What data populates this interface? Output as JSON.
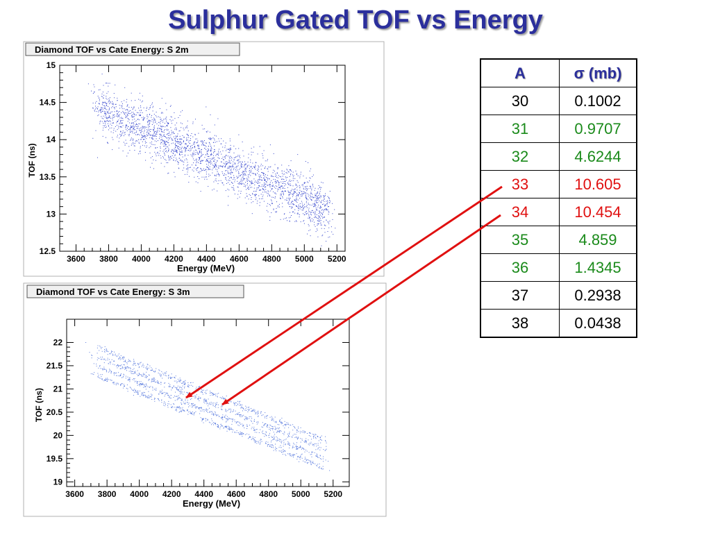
{
  "slide_title": "Sulphur Gated TOF vs Energy",
  "table": {
    "headers": [
      "A",
      "σ (mb)"
    ],
    "rows": [
      {
        "a": "30",
        "sigma": "0.1002",
        "color": "#000000"
      },
      {
        "a": "31",
        "sigma": "0.9707",
        "color": "#1a8a1a"
      },
      {
        "a": "32",
        "sigma": "4.6244",
        "color": "#1a8a1a"
      },
      {
        "a": "33",
        "sigma": "10.605",
        "color": "#e01010"
      },
      {
        "a": "34",
        "sigma": "10.454",
        "color": "#e01010"
      },
      {
        "a": "35",
        "sigma": "4.859",
        "color": "#1a8a1a"
      },
      {
        "a": "36",
        "sigma": "1.4345",
        "color": "#1a8a1a"
      },
      {
        "a": "37",
        "sigma": "0.2938",
        "color": "#000000"
      },
      {
        "a": "38",
        "sigma": "0.0438",
        "color": "#000000"
      }
    ]
  },
  "arrow_color": "#e01010",
  "chart_data": [
    {
      "type": "scatter",
      "title": "Diamond TOF vs Cate Energy: S 2m",
      "xlabel": "Energy (MeV)",
      "ylabel": "TOF (ns)",
      "xlim": [
        3500,
        5250
      ],
      "ylim": [
        12.5,
        15
      ],
      "xticks": [
        3600,
        3800,
        4000,
        4200,
        4400,
        4600,
        4800,
        5000,
        5200
      ],
      "yticks": [
        12.5,
        13,
        13.5,
        14,
        14.5,
        15
      ],
      "ytick_labels": [
        "12.5",
        "13",
        "13.5",
        "14",
        "14.5",
        "15"
      ],
      "point_color": "#3344cc",
      "bands": [
        {
          "x_start": 3700,
          "x_end": 5150,
          "y_start": 14.45,
          "y_end": 13.05
        }
      ],
      "band_width_ns": 0.35
    },
    {
      "type": "scatter",
      "title": "Diamond TOF vs Cate Energy: S 3m",
      "xlabel": "Energy (MeV)",
      "ylabel": "TOF (ns)",
      "xlim": [
        3550,
        5300
      ],
      "ylim": [
        18.9,
        22.5
      ],
      "xticks": [
        3600,
        3800,
        4000,
        4200,
        4400,
        4600,
        4800,
        5000,
        5200
      ],
      "yticks": [
        19,
        19.5,
        20,
        20.5,
        21,
        21.5,
        22
      ],
      "ytick_labels": [
        "19",
        "19.5",
        "20",
        "20.5",
        "21",
        "21.5",
        "22"
      ],
      "point_color": "#5577dd",
      "bands": [
        {
          "x_start": 3700,
          "x_end": 5150,
          "y_start": 21.95,
          "y_end": 19.9
        },
        {
          "x_start": 3700,
          "x_end": 5150,
          "y_start": 21.75,
          "y_end": 19.7
        },
        {
          "x_start": 3700,
          "x_end": 5150,
          "y_start": 21.55,
          "y_end": 19.5
        },
        {
          "x_start": 3700,
          "x_end": 5150,
          "y_start": 21.35,
          "y_end": 19.3
        }
      ],
      "band_width_ns": 0.07
    }
  ]
}
